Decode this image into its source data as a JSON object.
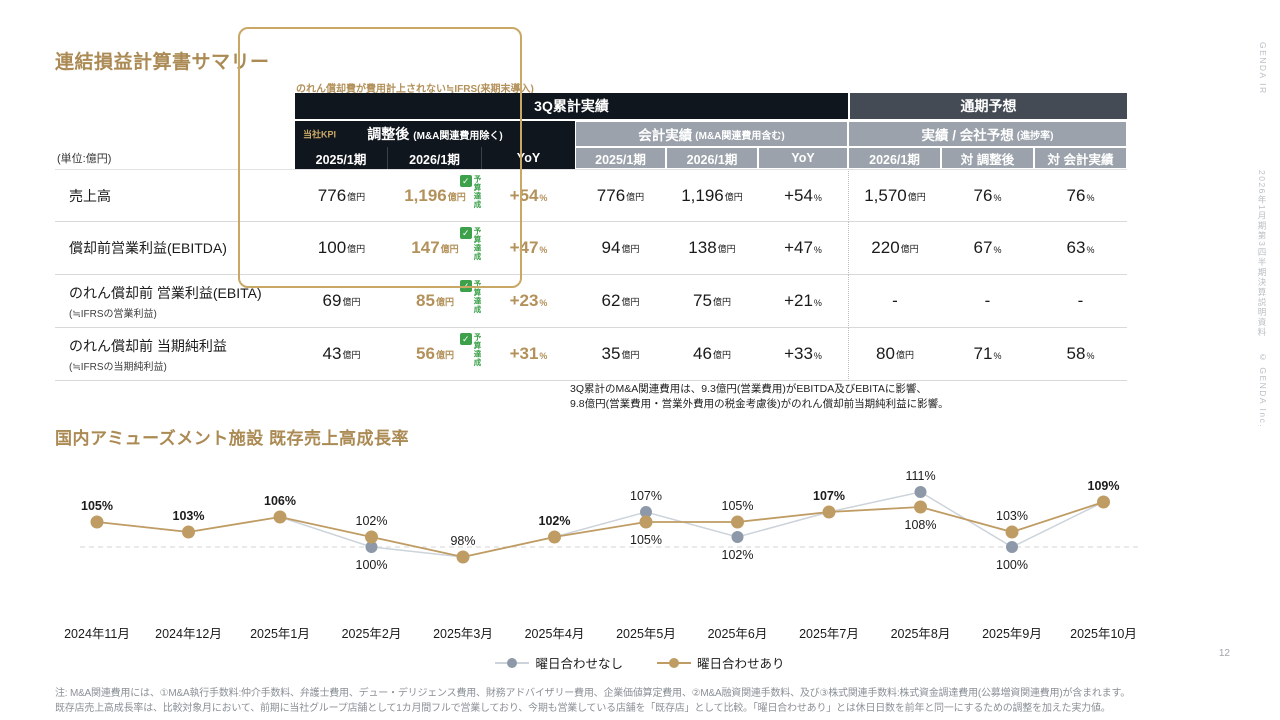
{
  "units": {
    "oku": "億円",
    "pct": "%"
  },
  "sidebar": {
    "brand": "GENDA IR",
    "doc_title": "2026年1月期第3四半期決算説明資料",
    "copyright": "© GENDA Inc.",
    "page_number": "12"
  },
  "section1": {
    "title": "連結損益計算書サマリー",
    "table_note": "のれん償却費が費用計上されない≒IFRS(来期末導入)",
    "unit_label": "(単位:億円)",
    "headers": {
      "q3": "3Q累計実績",
      "forecast": "通期予想",
      "kpi_badge": "当社KPI",
      "adjusted": "調整後",
      "adjusted_sub": "(M&A関連費用除く)",
      "accounting": "会計実績",
      "accounting_sub": "(M&A関連費用含む)",
      "progress": "実績 / 会社予想",
      "progress_sub": "(進捗率)",
      "adj_cols": [
        "2025/1期",
        "2026/1期",
        "YoY"
      ],
      "acc_cols": [
        "2025/1期",
        "2026/1期",
        "YoY"
      ],
      "fc_cols": [
        "2026/1期",
        "対 調整後",
        "対 会計実績"
      ]
    },
    "badge_label": "予算達成",
    "badge_check": "✓",
    "rows": [
      {
        "label": "売上高",
        "sublabel": "",
        "a_py": {
          "v": "776",
          "u": "億円"
        },
        "a_cy": {
          "v": "1,196",
          "u": "億円"
        },
        "a_yoy": {
          "v": "+54",
          "u": "%"
        },
        "c_py": {
          "v": "776",
          "u": "億円"
        },
        "c_cy": {
          "v": "1,196",
          "u": "億円"
        },
        "c_yoy": {
          "v": "+54",
          "u": "%"
        },
        "f_fy": {
          "v": "1,570",
          "u": "億円"
        },
        "f_adj": {
          "v": "76",
          "u": "%"
        },
        "f_acc": {
          "v": "76",
          "u": "%"
        }
      },
      {
        "label": "償却前営業利益(EBITDA)",
        "sublabel": "",
        "a_py": {
          "v": "100",
          "u": "億円"
        },
        "a_cy": {
          "v": "147",
          "u": "億円"
        },
        "a_yoy": {
          "v": "+47",
          "u": "%"
        },
        "c_py": {
          "v": "94",
          "u": "億円"
        },
        "c_cy": {
          "v": "138",
          "u": "億円"
        },
        "c_yoy": {
          "v": "+47",
          "u": "%"
        },
        "f_fy": {
          "v": "220",
          "u": "億円"
        },
        "f_adj": {
          "v": "67",
          "u": "%"
        },
        "f_acc": {
          "v": "63",
          "u": "%"
        }
      },
      {
        "label": "のれん償却前 営業利益(EBITA)",
        "sublabel": "(≒IFRSの営業利益)",
        "a_py": {
          "v": "69",
          "u": "億円"
        },
        "a_cy": {
          "v": "85",
          "u": "億円"
        },
        "a_yoy": {
          "v": "+23",
          "u": "%"
        },
        "c_py": {
          "v": "62",
          "u": "億円"
        },
        "c_cy": {
          "v": "75",
          "u": "億円"
        },
        "c_yoy": {
          "v": "+21",
          "u": "%"
        },
        "f_fy": {
          "v": "-",
          "u": ""
        },
        "f_adj": {
          "v": "-",
          "u": ""
        },
        "f_acc": {
          "v": "-",
          "u": ""
        }
      },
      {
        "label": "のれん償却前 当期純利益",
        "sublabel": "(≒IFRSの当期純利益)",
        "a_py": {
          "v": "43",
          "u": "億円"
        },
        "a_cy": {
          "v": "56",
          "u": "億円"
        },
        "a_yoy": {
          "v": "+31",
          "u": "%"
        },
        "c_py": {
          "v": "35",
          "u": "億円"
        },
        "c_cy": {
          "v": "46",
          "u": "億円"
        },
        "c_yoy": {
          "v": "+33",
          "u": "%"
        },
        "f_fy": {
          "v": "80",
          "u": "億円"
        },
        "f_adj": {
          "v": "71",
          "u": "%"
        },
        "f_acc": {
          "v": "58",
          "u": "%"
        }
      }
    ],
    "footnote1": "3Q累計のM&A関連費用は、9.3億円(営業費用)がEBITDA及びEBITAに影響、",
    "footnote2": "9.8億円(営業費用・営業外費用の税金考慮後)がのれん償却前当期純利益に影響。"
  },
  "section2": {
    "title": "国内アミューズメント施設 既存売上高成長率"
  },
  "chart_data": {
    "type": "line",
    "title": "国内アミューズメント施設 既存売上高成長率",
    "categories": [
      "2024年11月",
      "2024年12月",
      "2025年1月",
      "2025年2月",
      "2025年3月",
      "2025年4月",
      "2025年5月",
      "2025年6月",
      "2025年7月",
      "2025年8月",
      "2025年9月",
      "2025年10月"
    ],
    "series": [
      {
        "name": "曜日合わせなし",
        "values": [
          105,
          103,
          106,
          100,
          98,
          102,
          107,
          102,
          107,
          111,
          100,
          109
        ],
        "dot_color": "#8d99a8",
        "line_color": "#ccd3da"
      },
      {
        "name": "曜日合わせあり",
        "values": [
          105,
          103,
          106,
          102,
          98,
          102,
          105,
          105,
          107,
          108,
          103,
          109
        ],
        "dot_color": "#bf9c63",
        "line_color": "#bf9c63"
      }
    ],
    "unit": "%",
    "baseline": 100,
    "ylim": [
      95,
      114
    ],
    "grid": "dashed-baseline-only",
    "legend_position": "bottom",
    "bold_label_months": [
      0,
      1,
      2,
      5,
      8,
      11
    ]
  },
  "footer": {
    "note1": "注: M&A関連費用には、①M&A執行手数料:仲介手数料、弁護士費用、デュー・デリジェンス費用、財務アドバイザリー費用、企業価値算定費用、②M&A融資関連手数料、及び③株式関連手数料:株式資金調達費用(公募増資関連費用)が含まれます。",
    "note2": "既存店売上高成長率は、比較対象月において、前期に当社グループ店舗として1カ月間フルで営業しており、今期も営業している店舗を「既存店」として比較。「曜日合わせあり」とは休日日数を前年と同一にするための調整を加えた実力値。"
  }
}
